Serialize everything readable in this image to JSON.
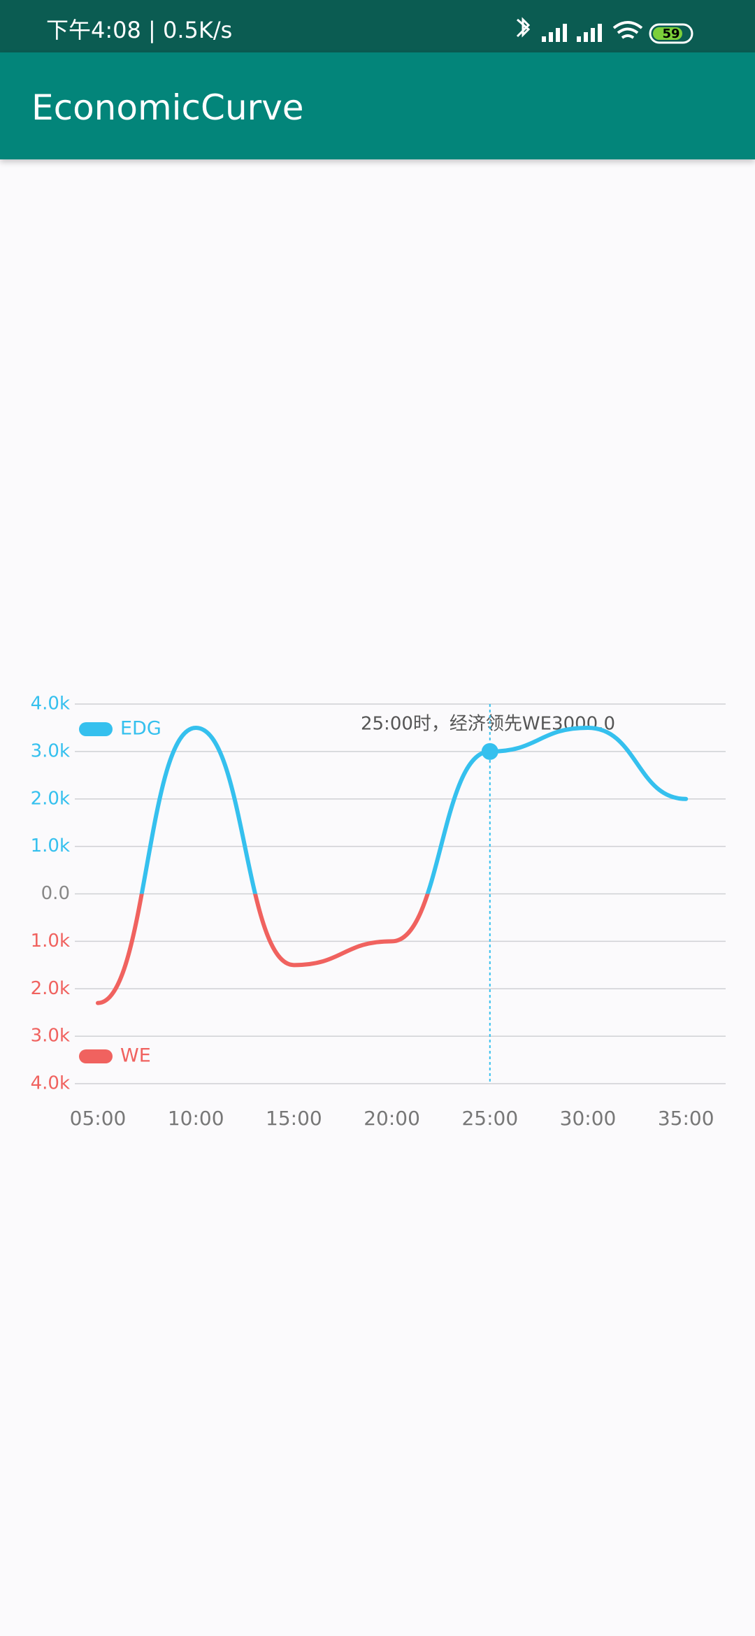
{
  "status_bar": {
    "time_speed": "下午4:08 | 0.5K/s",
    "battery": "59"
  },
  "app_bar": {
    "title": "EconomicCurve"
  },
  "chart_data": {
    "type": "line",
    "categories": [
      "05:00",
      "10:00",
      "15:00",
      "20:00",
      "25:00",
      "30:00",
      "35:00"
    ],
    "values": [
      -2300,
      3500,
      -1500,
      -1000,
      3000,
      3500,
      2000
    ],
    "ylim": [
      -4000,
      4000
    ],
    "yticks": [
      {
        "value": -4000,
        "label": "4.0k"
      },
      {
        "value": -3000,
        "label": "3.0k"
      },
      {
        "value": -2000,
        "label": "2.0k"
      },
      {
        "value": -1000,
        "label": "1.0k"
      },
      {
        "value": 0,
        "label": "0.0"
      },
      {
        "value": 1000,
        "label": "1.0k"
      },
      {
        "value": 2000,
        "label": "2.0k"
      },
      {
        "value": 3000,
        "label": "3.0k"
      },
      {
        "value": 4000,
        "label": "4.0k"
      }
    ],
    "grid": true,
    "positive_color": "#35c0ee",
    "negative_color": "#f0625f",
    "legend": [
      {
        "name": "EDG",
        "color": "#35c0ee"
      },
      {
        "name": "WE",
        "color": "#f0625f"
      }
    ],
    "highlight": 4,
    "annotation": "25:00时，经济领先WE3000.0"
  }
}
